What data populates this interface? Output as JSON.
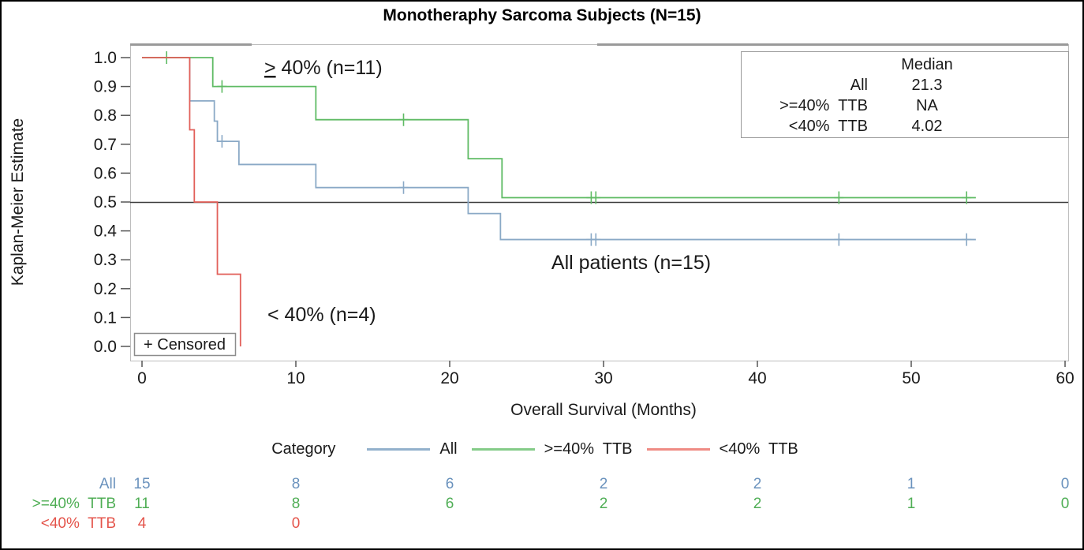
{
  "title": "Monotheraphy Sarcoma Subjects (N=15)",
  "annotations": {
    "ge40_label": "≥ 40% (n=11)",
    "all_label": "All patients (n=15)",
    "lt40_label": "< 40% (n=4)",
    "censored_label": "+ Censored"
  },
  "median_table": {
    "header": "Median",
    "rows": [
      {
        "label": "All",
        "value": "21.3"
      },
      {
        "label": ">=40%  TTB",
        "value": "NA"
      },
      {
        "label": "<40%  TTB",
        "value": "4.02"
      }
    ]
  },
  "legend": {
    "title": "Category",
    "items": [
      {
        "label": "All",
        "color": "#93b1cc"
      },
      {
        "label": ">=40%  TTB",
        "color": "#84cb88"
      },
      {
        "label": "<40%  TTB",
        "color": "#ef8b84"
      }
    ]
  },
  "risk_table": {
    "columns_months": [
      0,
      10,
      20,
      30,
      40,
      50,
      60
    ],
    "rows": [
      {
        "label": "All",
        "color": "#6a92bd",
        "counts": [
          "15",
          "8",
          "6",
          "2",
          "2",
          "1",
          "0"
        ]
      },
      {
        "label": ">=40%  TTB",
        "color": "#4fae55",
        "counts": [
          "11",
          "8",
          "6",
          "2",
          "2",
          "1",
          "0"
        ]
      },
      {
        "label": "<40%  TTB",
        "color": "#e4544b",
        "counts": [
          "4",
          "0"
        ]
      }
    ]
  },
  "chart_data": {
    "type": "line",
    "subtype": "kaplan-meier-step",
    "title": "Monotheraphy Sarcoma Subjects (N=15)",
    "xlabel": "Overall Survival (Months)",
    "ylabel": "Kaplan-Meier Estimate",
    "xlim": [
      0,
      61
    ],
    "ylim": [
      0.0,
      1.0
    ],
    "x_ticks": [
      0,
      10,
      20,
      30,
      40,
      50,
      60
    ],
    "y_ticks": [
      "1.0",
      "0.9",
      "0.8",
      "0.7",
      "0.6",
      "0.5",
      "0.4",
      "0.3",
      "0.2",
      "0.1",
      "0.0"
    ],
    "reference_line_y": 0.5,
    "grid": false,
    "legend_position": "bottom",
    "series": [
      {
        "name": "All",
        "color": "#8aa9c6",
        "median": "21.3",
        "steps": [
          [
            0,
            1.0
          ],
          [
            3.1,
            0.85
          ],
          [
            4.7,
            0.78
          ],
          [
            4.9,
            0.71
          ],
          [
            6.3,
            0.63
          ],
          [
            11.3,
            0.55
          ],
          [
            21.2,
            0.46
          ],
          [
            23.3,
            0.37
          ]
        ],
        "end_time": 54.2,
        "censors": [
          [
            5.2,
            0.71
          ],
          [
            17.0,
            0.55
          ],
          [
            29.2,
            0.37
          ],
          [
            29.5,
            0.37
          ],
          [
            45.3,
            0.37
          ],
          [
            53.6,
            0.37
          ]
        ]
      },
      {
        "name": ">=40% TTB",
        "color": "#5fbb64",
        "median": "NA",
        "steps": [
          [
            0,
            1.0
          ],
          [
            4.6,
            0.9
          ],
          [
            11.3,
            0.785
          ],
          [
            21.2,
            0.65
          ],
          [
            23.4,
            0.515
          ]
        ],
        "end_time": 54.2,
        "censors": [
          [
            1.6,
            1.0
          ],
          [
            5.2,
            0.9
          ],
          [
            17.0,
            0.785
          ],
          [
            29.2,
            0.515
          ],
          [
            29.5,
            0.515
          ],
          [
            45.3,
            0.515
          ],
          [
            53.6,
            0.515
          ]
        ]
      },
      {
        "name": "<40% TTB",
        "color": "#e2605a",
        "median": "4.02",
        "steps": [
          [
            0,
            1.0
          ],
          [
            3.1,
            0.75
          ],
          [
            3.4,
            0.5
          ],
          [
            4.9,
            0.25
          ],
          [
            6.4,
            0.0
          ]
        ],
        "end_time": 6.4,
        "censors": []
      }
    ]
  }
}
